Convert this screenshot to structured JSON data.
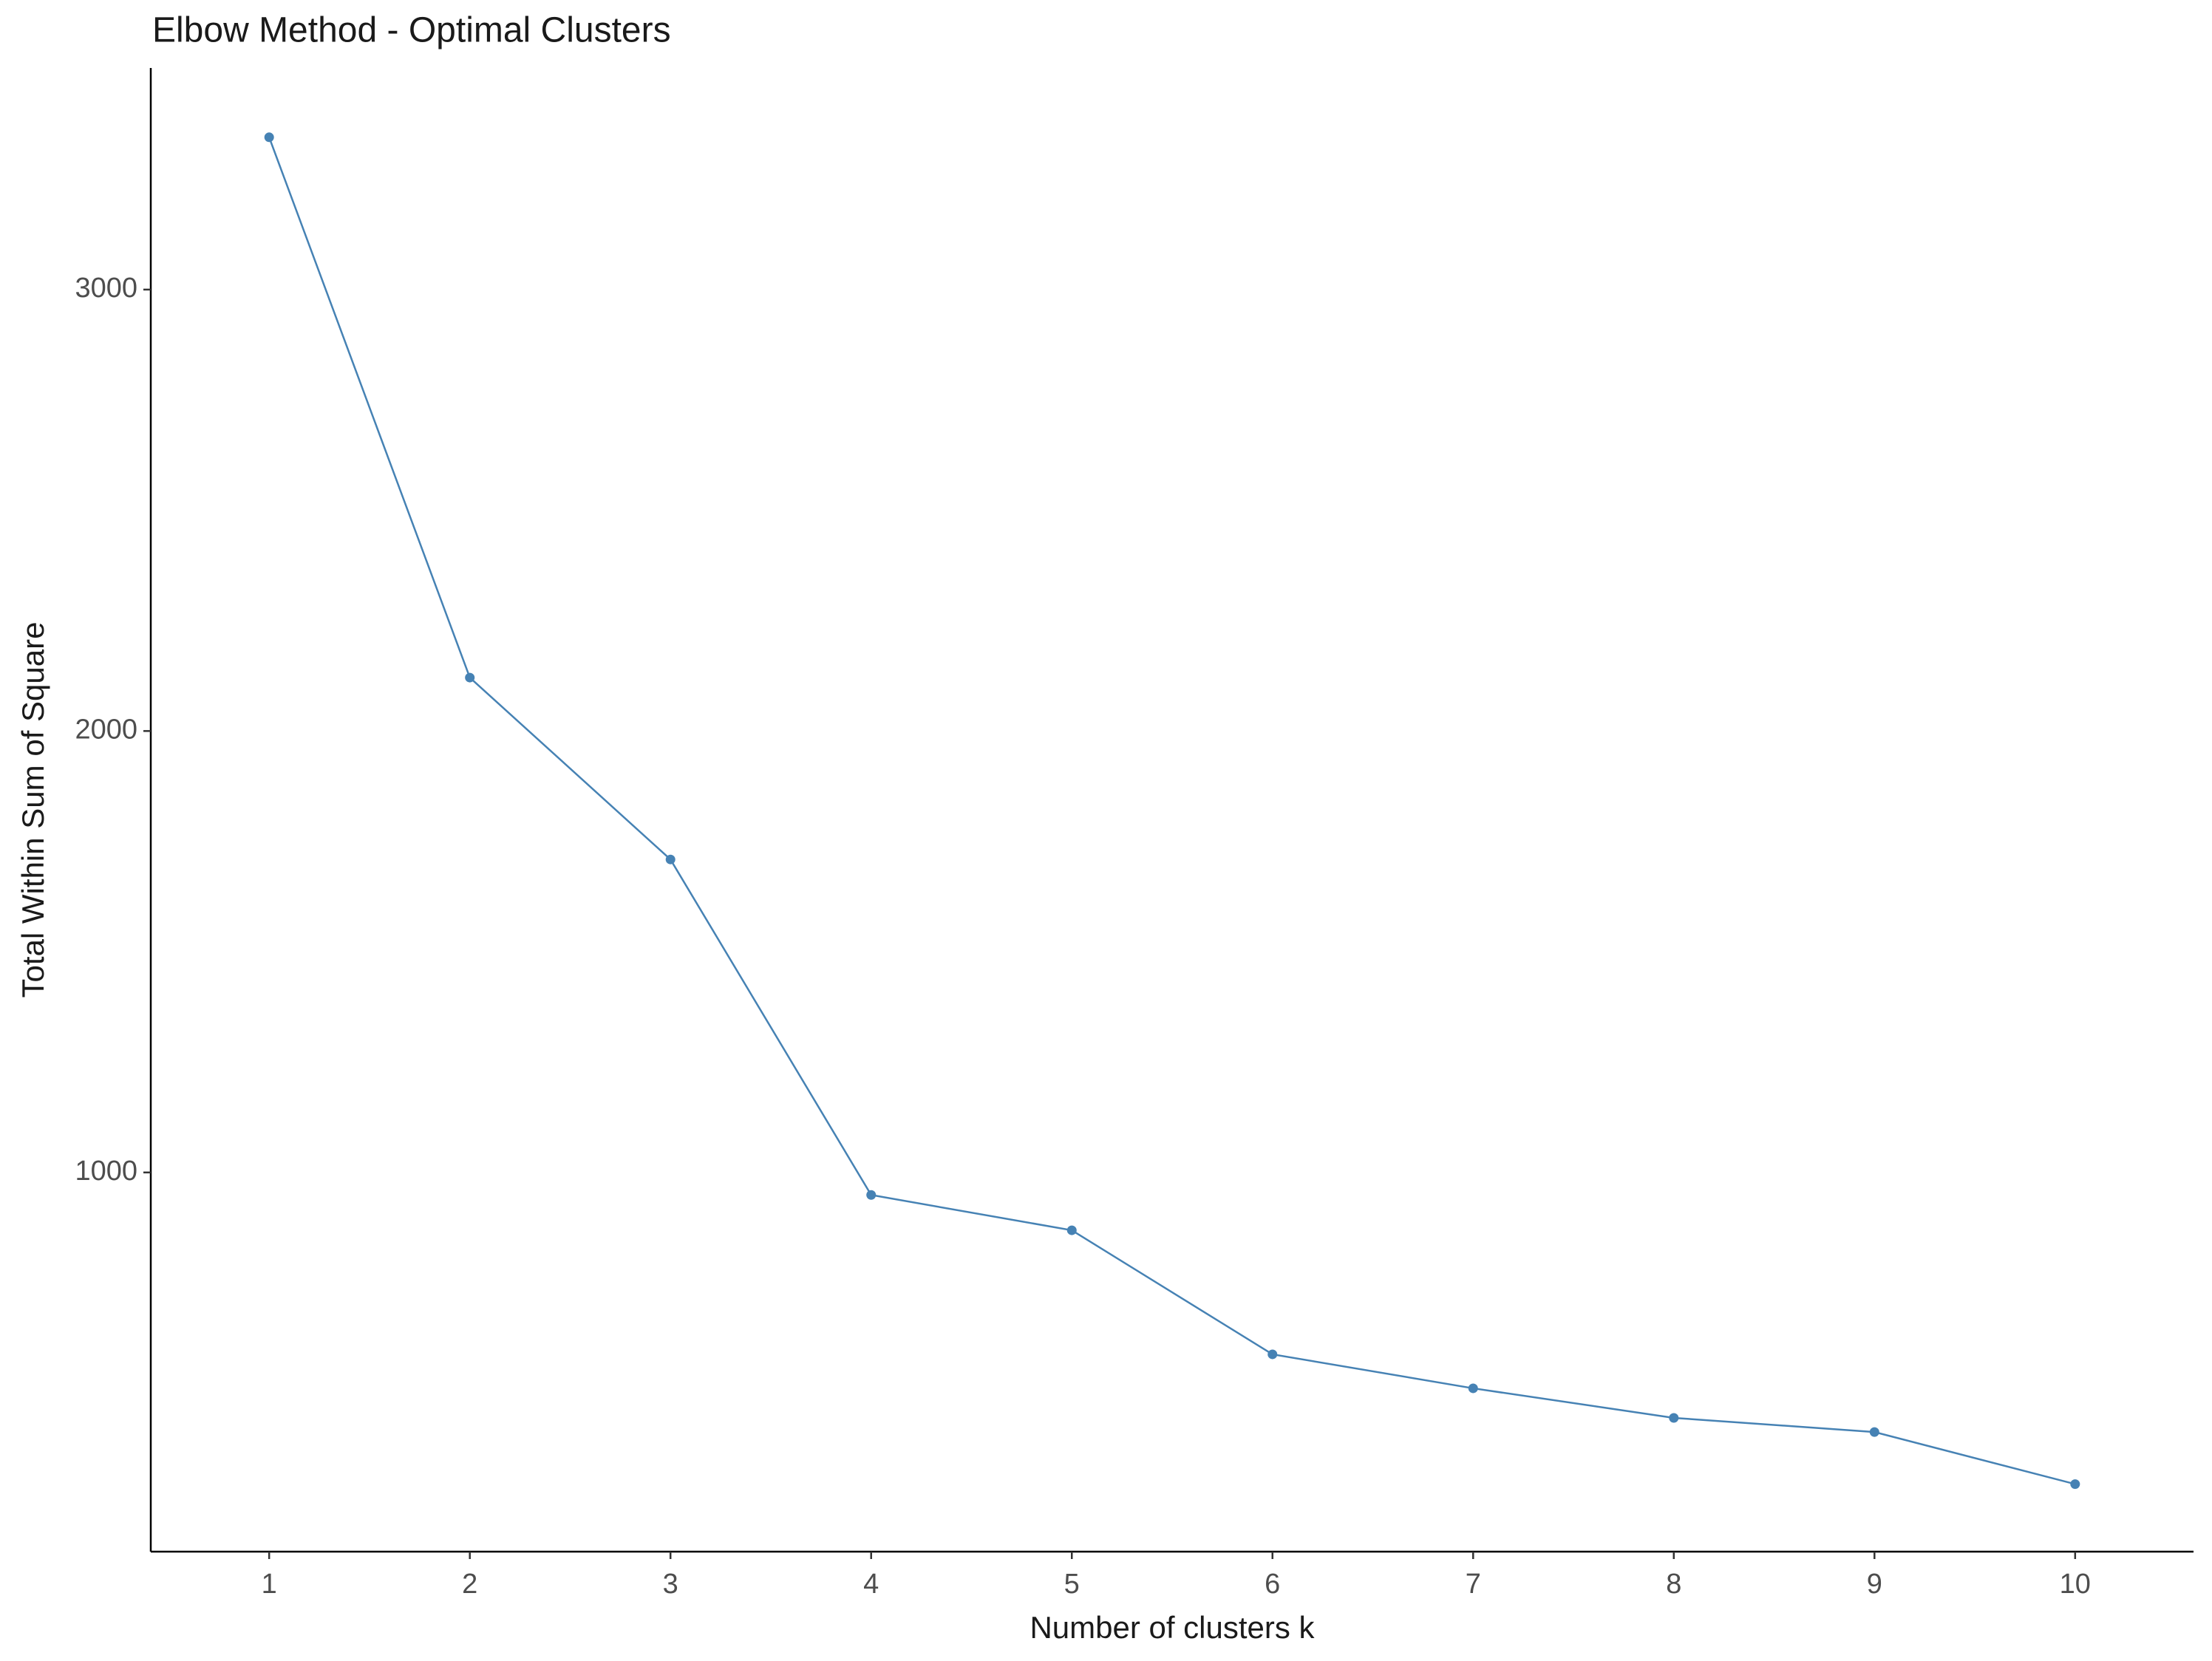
{
  "chart_data": {
    "type": "line",
    "title": "Elbow Method - Optimal Clusters",
    "x_label": "Number of clusters k",
    "y_label": "Total Within Sum of Square",
    "x": [
      1,
      2,
      3,
      4,
      5,
      6,
      7,
      8,
      9,
      10
    ],
    "series": [
      {
        "name": "Total Within Sum of Square",
        "color": "#4682b4",
        "values": [
          3345,
          2121,
          1709,
          949,
          869,
          588,
          511,
          444,
          412,
          294
        ]
      }
    ],
    "xlim": [
      0.41,
      10.59
    ],
    "xticks": [
      1,
      2,
      3,
      4,
      5,
      6,
      7,
      8,
      9,
      10
    ],
    "ylim": [
      141,
      3502
    ],
    "yticks": [
      1000,
      2000,
      3000
    ],
    "grid": false
  }
}
